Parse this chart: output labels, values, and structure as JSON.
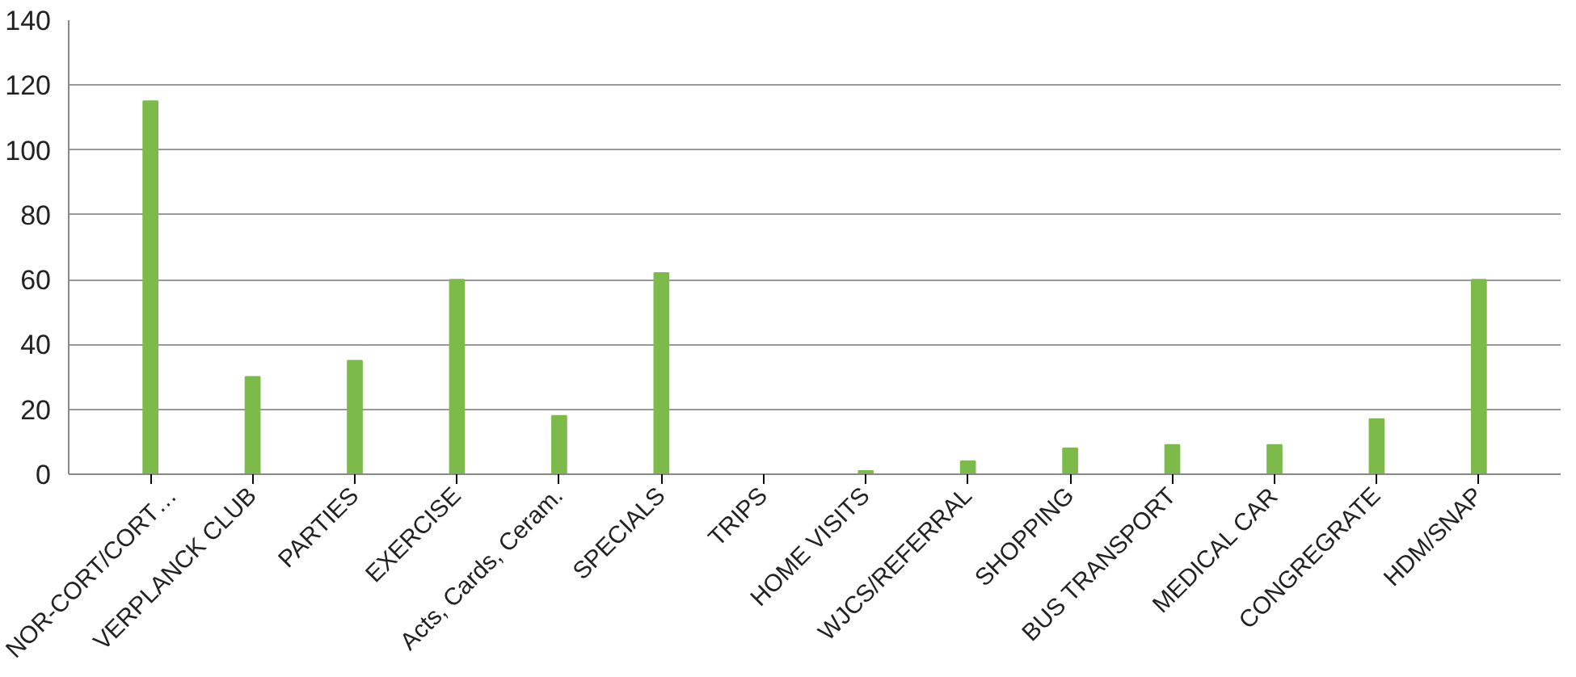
{
  "chart_data": {
    "type": "bar",
    "categories": [
      "NOR-CORT/CORT…",
      "VERPLANCK CLUB",
      "PARTIES",
      "EXERCISE",
      "Acts, Cards, Ceram.",
      "SPECIALS",
      "TRIPS",
      "HOME VISITS",
      "WJCS/REFERRAL",
      "SHOPPING",
      "BUS TRANSPORT",
      "MEDICAL CAR",
      "CONGREGRATE",
      "HDM/SNAP"
    ],
    "values": [
      115,
      30,
      35,
      60,
      18,
      62,
      0,
      1,
      4,
      8,
      9,
      9,
      17,
      60
    ],
    "color": "#7cbb4a",
    "ylim": [
      0,
      140
    ],
    "yticks": [
      0,
      20,
      40,
      60,
      80,
      100,
      120,
      140
    ],
    "grid": "y"
  }
}
